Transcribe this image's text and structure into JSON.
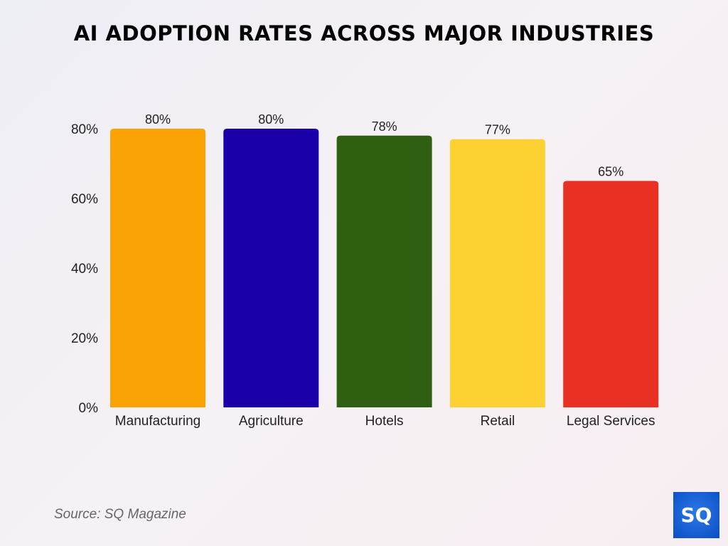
{
  "chart_data": {
    "type": "bar",
    "title": "AI ADOPTION RATES ACROSS MAJOR INDUSTRIES",
    "categories": [
      "Manufacturing",
      "Agriculture",
      "Hotels",
      "Retail",
      "Legal Services"
    ],
    "values": [
      80,
      80,
      78,
      77,
      65
    ],
    "data_labels": [
      "80%",
      "80%",
      "78%",
      "77%",
      "65%"
    ],
    "colors": [
      "#fba304",
      "#1a00a8",
      "#2f5f10",
      "#fdd132",
      "#e83122"
    ],
    "yticks": [
      0,
      20,
      40,
      60,
      80
    ],
    "ytick_labels": [
      "0%",
      "20%",
      "40%",
      "60%",
      "80%"
    ],
    "ylim": [
      0,
      80
    ],
    "grid": false,
    "xlabel": "",
    "ylabel": ""
  },
  "source": "Source: SQ Magazine",
  "logo_text": "SQ"
}
